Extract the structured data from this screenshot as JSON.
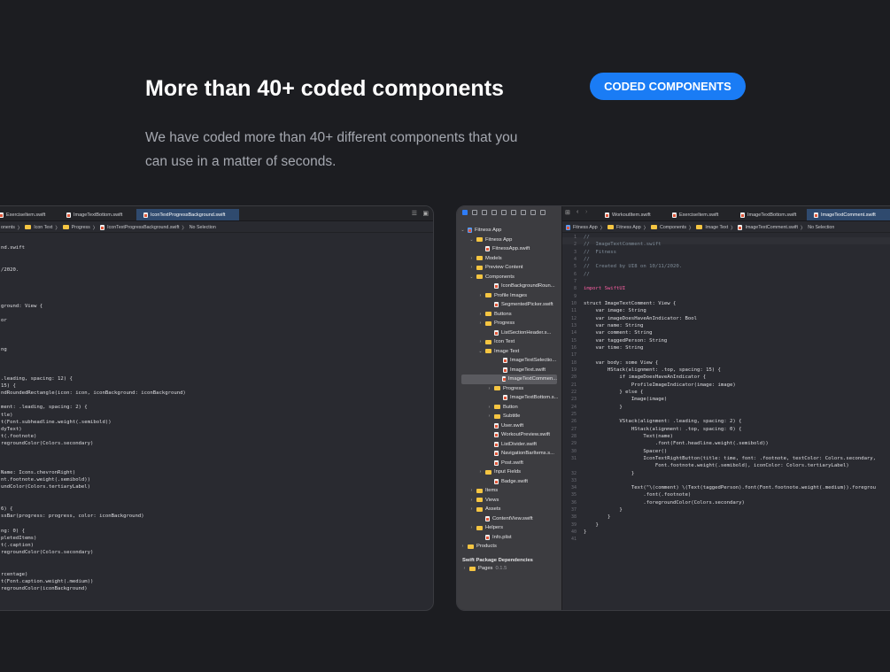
{
  "hero": {
    "title": "More than 40+ coded components",
    "badge": "CODED COMPONENTS",
    "description": "We have coded more than 40+ different components that you can use in a matter of seconds."
  },
  "left_window": {
    "tabs": [
      "ExerciseItem.swift",
      "ImageTextBottom.swift",
      "IconTextProgressBackground.swift"
    ],
    "breadcrumb": [
      "onents",
      "Icon Text",
      "Progress",
      "IconTextProgressBackground.swift",
      "No Selection"
    ],
    "code": [
      "",
      "nd.swift",
      "",
      "",
      "/2020.",
      "",
      "",
      "",
      "",
      "ground: View {",
      "",
      "or",
      "",
      "",
      "",
      "ng",
      "",
      "",
      "",
      ".leading, spacing: 12) {",
      "15) {",
      "ndRoundedRectangle(icon: icon, iconBackground: iconBackground)",
      "",
      "ment: .leading, spacing: 2) {",
      "tle)",
      "t(Font.subheadline.weight(.semibold))",
      "dyText)",
      "t(.footnote)",
      "regroundColor(Colors.secondary)",
      "",
      "",
      "",
      "Name: Icons.chevronRight)",
      "nt.footnote.weight(.semibold))",
      "undColor(Colors.tertiaryLabel)",
      "",
      "",
      "6) {",
      "ssBar(progress: progress, color: iconBackground)",
      "",
      "ng: 0) {",
      "pletedItems)",
      "t(.caption)",
      "regroundColor(Colors.secondary)",
      "",
      "",
      "rcentage)",
      "t(Font.caption.weight(.medium))",
      "regroundColor(iconBackground)"
    ]
  },
  "right_window": {
    "tabs": [
      "WorkoutItem.swift",
      "ExerciseItem.swift",
      "ImageTextBottom.swift",
      "ImageTextComment.swift"
    ],
    "breadcrumb": [
      "Fitness App",
      "Fitness App",
      "Components",
      "Image Text",
      "ImageTextComment.swift",
      "No Selection"
    ],
    "navigator": [
      {
        "label": "Fitness App",
        "level": 0,
        "type": "project",
        "open": true
      },
      {
        "label": "Fitness App",
        "level": 1,
        "type": "folder",
        "open": true
      },
      {
        "label": "FitnessApp.swift",
        "level": 2,
        "type": "file"
      },
      {
        "label": "Models",
        "level": 1,
        "type": "folder"
      },
      {
        "label": "Preview Content",
        "level": 1,
        "type": "folder"
      },
      {
        "label": "Components",
        "level": 1,
        "type": "folder",
        "open": true
      },
      {
        "label": "IconBackgroundRoun...",
        "level": 3,
        "type": "file"
      },
      {
        "label": "Profile Images",
        "level": 2,
        "type": "folder"
      },
      {
        "label": "SegmentedPicker.swift",
        "level": 3,
        "type": "file"
      },
      {
        "label": "Buttons",
        "level": 2,
        "type": "folder"
      },
      {
        "label": "Progress",
        "level": 2,
        "type": "folder"
      },
      {
        "label": "ListSectionHeader.s...",
        "level": 3,
        "type": "file"
      },
      {
        "label": "Icon Text",
        "level": 2,
        "type": "folder"
      },
      {
        "label": "Image Text",
        "level": 2,
        "type": "folder",
        "open": true
      },
      {
        "label": "ImageTextSelectio...",
        "level": 4,
        "type": "file"
      },
      {
        "label": "ImageText.swift",
        "level": 4,
        "type": "file"
      },
      {
        "label": "ImageTextCommen...",
        "level": 4,
        "type": "file",
        "selected": true
      },
      {
        "label": "Progress",
        "level": 3,
        "type": "folder"
      },
      {
        "label": "ImageTextBottom.s...",
        "level": 4,
        "type": "file"
      },
      {
        "label": "Button",
        "level": 3,
        "type": "folder"
      },
      {
        "label": "Subtitle",
        "level": 3,
        "type": "folder"
      },
      {
        "label": "User.swift",
        "level": 3,
        "type": "file"
      },
      {
        "label": "WorkoutPreview.swift",
        "level": 3,
        "type": "file"
      },
      {
        "label": "ListDivider.swift",
        "level": 3,
        "type": "file"
      },
      {
        "label": "NavigationBarItems.s...",
        "level": 3,
        "type": "file"
      },
      {
        "label": "Post.swift",
        "level": 3,
        "type": "file"
      },
      {
        "label": "Input Fields",
        "level": 2,
        "type": "folder"
      },
      {
        "label": "Badge.swift",
        "level": 3,
        "type": "file"
      },
      {
        "label": "Items",
        "level": 1,
        "type": "folder"
      },
      {
        "label": "Views",
        "level": 1,
        "type": "folder"
      },
      {
        "label": "Assets",
        "level": 1,
        "type": "folder"
      },
      {
        "label": "ContentView.swift",
        "level": 2,
        "type": "file"
      },
      {
        "label": "Helpers",
        "level": 1,
        "type": "folder"
      },
      {
        "label": "Info.plist",
        "level": 2,
        "type": "file"
      },
      {
        "label": "Products",
        "level": 0,
        "type": "folder"
      }
    ],
    "packages_title": "Swift Package Dependencies",
    "package": {
      "name": "Pages",
      "version": "0.1.5"
    },
    "line_numbers": [
      "1",
      "2",
      "3",
      "4",
      "5",
      "6",
      "7",
      "8",
      "9",
      "10",
      "11",
      "12",
      "13",
      "14",
      "15",
      "16",
      "17",
      "18",
      "19",
      "20",
      "21",
      "22",
      "23",
      "24",
      "25",
      "26",
      "27",
      "28",
      "29",
      "30",
      "31",
      "",
      "32",
      "33",
      "34",
      "35",
      "36",
      "37",
      "38",
      "39",
      "40",
      "41"
    ],
    "code": [
      "//",
      "//  ImageTextComment.swift",
      "//  Fitness",
      "//",
      "//  Created by UI8 on 10/11/2020.",
      "//",
      "",
      "import SwiftUI",
      "",
      "struct ImageTextComment: View {",
      "    var image: String",
      "    var imageDoesHaveAnIndicator: Bool",
      "    var name: String",
      "    var comment: String",
      "    var taggedPerson: String",
      "    var time: String",
      "",
      "    var body: some View {",
      "        HStack(alignment: .top, spacing: 15) {",
      "            if imageDoesHaveAnIndicator {",
      "                ProfileImageIndicator(image: image)",
      "            } else {",
      "                Image(image)",
      "            }",
      "",
      "            VStack(alignment: .leading, spacing: 2) {",
      "                HStack(alignment: .top, spacing: 0) {",
      "                    Text(name)",
      "                        .font(Font.headline.weight(.semibold))",
      "                    Spacer()",
      "                    IconTextRightButton(title: time, font: .footnote, textColor: Colors.secondary,",
      "                        Font.footnote.weight(.semibold), iconColor: Colors.tertiaryLabel)",
      "                }",
      "",
      "                Text(\"\\(comment) \\(Text(taggedPerson).font(Font.footnote.weight(.medium)).foregrou",
      "                    .font(.footnote)",
      "                    .foregroundColor(Colors.secondary)",
      "            }",
      "        }",
      "    }",
      "}",
      ""
    ]
  },
  "colors": {
    "background": "#1c1d21",
    "badge": "#1a7cf5",
    "editor": "#292a30",
    "sidebar": "#3c3c40",
    "active_tab": "#2f4a6e"
  }
}
